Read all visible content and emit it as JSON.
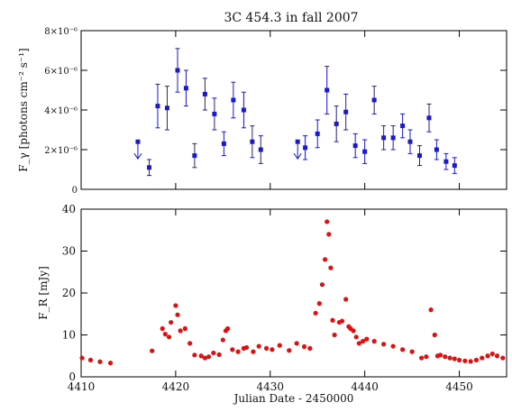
{
  "chart_data": [
    {
      "type": "scatter",
      "title": "3C 454.3 in fall 2007",
      "ylabel": "F_γ [photons cm⁻² s⁻¹]",
      "xlabel": "",
      "xlim": [
        4410,
        4455
      ],
      "ylim": [
        0,
        8e-06
      ],
      "y_tick_labels": [
        "0",
        "2×10⁻⁶",
        "4×10⁻⁶",
        "6×10⁻⁶",
        "8×10⁻⁶"
      ],
      "y_ticks": [
        0,
        2e-06,
        4e-06,
        6e-06,
        8e-06
      ],
      "color": "#1a1acc",
      "series": [
        {
          "x": [
            4417.2,
            4418.1,
            4419.1,
            4420.2,
            4421.1,
            4422.0,
            4423.1,
            4424.1,
            4425.1,
            4426.1,
            4427.2,
            4428.1,
            4429.0,
            4433.7,
            4435.0,
            4436.0,
            4437.0,
            4438.0,
            4439.0,
            4440.0,
            4441.0,
            4442.0,
            4443.0,
            4444.0,
            4444.8,
            4445.8,
            4446.8,
            4447.6,
            4448.6,
            4449.5
          ],
          "y": [
            1.1e-06,
            4.2e-06,
            4.1e-06,
            6e-06,
            5.1e-06,
            1.7e-06,
            4.8e-06,
            3.8e-06,
            2.3e-06,
            4.5e-06,
            4e-06,
            2.4e-06,
            2e-06,
            2.1e-06,
            2.8e-06,
            5e-06,
            3.3e-06,
            3.9e-06,
            2.2e-06,
            1.9e-06,
            4.5e-06,
            2.6e-06,
            2.6e-06,
            3.2e-06,
            2.4e-06,
            1.7e-06,
            3.6e-06,
            2e-06,
            1.4e-06,
            1.2e-06
          ],
          "yerr": [
            4e-07,
            1.1e-06,
            1.1e-06,
            1.1e-06,
            9e-07,
            6e-07,
            8e-07,
            8e-07,
            6e-07,
            9e-07,
            9e-07,
            8e-07,
            7e-07,
            6e-07,
            7e-07,
            1.2e-06,
            9e-07,
            9e-07,
            6e-07,
            6e-07,
            7e-07,
            6e-07,
            6e-07,
            6e-07,
            6e-07,
            5e-07,
            7e-07,
            5e-07,
            4e-07,
            4e-07
          ]
        }
      ],
      "upper_limits": {
        "x": [
          4416.0,
          4432.9
        ],
        "y": [
          2.4e-06,
          2.4e-06
        ]
      }
    },
    {
      "type": "scatter",
      "title": "",
      "ylabel": "F_R [mJy]",
      "xlabel": "Julian Date - 2450000",
      "xlim": [
        4410,
        4455
      ],
      "ylim": [
        0,
        40
      ],
      "x_ticks": [
        4410,
        4420,
        4430,
        4440,
        4450
      ],
      "y_ticks": [
        0,
        10,
        20,
        30,
        40
      ],
      "color": "#e01010",
      "series": [
        {
          "x": [
            4410.1,
            4411.0,
            4412.0,
            4413.1,
            4417.5,
            4418.6,
            4418.9,
            4419.3,
            4419.5,
            4420.0,
            4420.2,
            4420.5,
            4421.0,
            4421.5,
            4422.0,
            4422.7,
            4423.1,
            4423.5,
            4424.0,
            4424.6,
            4425.0,
            4425.3,
            4425.5,
            4426.0,
            4426.6,
            4427.2,
            4427.5,
            4428.2,
            4428.8,
            4429.6,
            4430.2,
            4431.0,
            4432.0,
            4432.8,
            4433.6,
            4434.2,
            4434.8,
            4435.2,
            4435.5,
            4435.8,
            4436.0,
            4436.2,
            4436.4,
            4436.6,
            4436.8,
            4437.3,
            4437.6,
            4438.0,
            4438.3,
            4438.5,
            4438.8,
            4439.1,
            4439.4,
            4439.8,
            4440.2,
            4441.0,
            4442.0,
            4443.0,
            4444.0,
            4445.0,
            4446.0,
            4446.5,
            4447.0,
            4447.4,
            4447.7,
            4448.0,
            4448.5,
            4449.0,
            4449.5,
            4450.0,
            4450.6,
            4451.2,
            4451.8,
            4452.4,
            4453.0,
            4453.5,
            4454.0,
            4454.6
          ],
          "y": [
            4.5,
            4.0,
            3.6,
            3.3,
            6.2,
            11.5,
            10.2,
            9.5,
            13.0,
            17.0,
            14.8,
            11.0,
            11.5,
            8.0,
            5.2,
            5.0,
            4.5,
            4.8,
            5.7,
            5.3,
            8.8,
            11.0,
            11.5,
            6.5,
            6.0,
            6.8,
            7.0,
            6.0,
            7.3,
            6.8,
            6.5,
            7.5,
            6.3,
            8.0,
            7.2,
            6.8,
            15.2,
            17.5,
            22.0,
            28.0,
            37.0,
            34.0,
            26.0,
            13.5,
            10.0,
            13.0,
            13.3,
            18.5,
            12.0,
            11.5,
            11.0,
            9.5,
            8.0,
            8.5,
            9.0,
            8.5,
            7.8,
            7.3,
            6.5,
            6.0,
            4.5,
            4.8,
            16.0,
            10.0,
            5.0,
            5.2,
            4.8,
            4.5,
            4.3,
            4.0,
            3.8,
            3.7,
            4.0,
            4.5,
            5.0,
            5.5,
            5.0,
            4.5
          ]
        }
      ]
    }
  ]
}
